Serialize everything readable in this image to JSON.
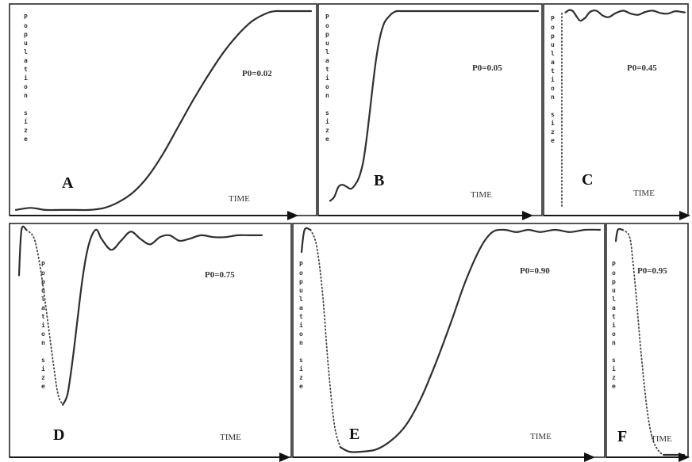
{
  "chart_data": [
    {
      "type": "line",
      "panel": "A",
      "annotation": "P0=0.02",
      "xlabel": "TIME",
      "ylabel": "Population size",
      "x": [
        0,
        0.05,
        0.1,
        0.15,
        0.2,
        0.25,
        0.3,
        0.35,
        0.4,
        0.45,
        0.5,
        0.55,
        0.6,
        0.65,
        0.7,
        0.75,
        0.8,
        0.85,
        0.88,
        0.9,
        0.95,
        1.0
      ],
      "y": [
        0.02,
        0.03,
        0.02,
        0.02,
        0.02,
        0.02,
        0.03,
        0.06,
        0.11,
        0.19,
        0.3,
        0.43,
        0.56,
        0.68,
        0.79,
        0.88,
        0.95,
        0.99,
        1.0,
        1.0,
        1.0,
        1.0
      ]
    },
    {
      "type": "line",
      "panel": "B",
      "annotation": "P0=0.05",
      "xlabel": "TIME",
      "ylabel": "Population size",
      "x": [
        0,
        0.02,
        0.04,
        0.06,
        0.08,
        0.1,
        0.12,
        0.14,
        0.16,
        0.18,
        0.2,
        0.22,
        0.24,
        0.26,
        0.28,
        0.3,
        0.32,
        0.34,
        0.36,
        0.4,
        0.5,
        0.6,
        0.7,
        0.8,
        0.9,
        1.0
      ],
      "y": [
        0.05,
        0.07,
        0.12,
        0.13,
        0.12,
        0.11,
        0.13,
        0.17,
        0.25,
        0.4,
        0.58,
        0.75,
        0.87,
        0.94,
        0.97,
        0.99,
        1.0,
        1.0,
        1.0,
        1.0,
        1.0,
        1.0,
        1.0,
        1.0,
        1.0,
        1.0
      ]
    },
    {
      "type": "line",
      "panel": "C",
      "annotation": "P0=0.45",
      "xlabel": "TIME",
      "ylabel": "Population size",
      "x": [
        0,
        0.03,
        0.06,
        0.09,
        0.12,
        0.15,
        0.19,
        0.23,
        0.28,
        0.33,
        0.38,
        0.44,
        0.5,
        0.56,
        0.62,
        0.68,
        0.74,
        0.8,
        0.86,
        0.92,
        0.97,
        1.0
      ],
      "y": [
        0.45,
        0.95,
        0.99,
        0.97,
        0.88,
        0.81,
        0.86,
        0.96,
        0.98,
        0.9,
        0.87,
        0.94,
        0.98,
        0.93,
        0.91,
        0.96,
        0.98,
        0.94,
        0.93,
        0.97,
        0.96,
        0.95
      ]
    },
    {
      "type": "line",
      "panel": "D",
      "annotation": "P0=0.75",
      "xlabel": "TIME",
      "ylabel": "Population size",
      "x": [
        0,
        0.01,
        0.03,
        0.06,
        0.08,
        0.1,
        0.12,
        0.14,
        0.16,
        0.18,
        0.2,
        0.22,
        0.24,
        0.26,
        0.28,
        0.3,
        0.32,
        0.34,
        0.38,
        0.42,
        0.46,
        0.5,
        0.54,
        0.58,
        0.62,
        0.66,
        0.7,
        0.75,
        0.8,
        0.85,
        0.9,
        0.95,
        1.0
      ],
      "y": [
        0.75,
        1.0,
        1.0,
        0.96,
        0.85,
        0.68,
        0.48,
        0.28,
        0.1,
        0.04,
        0.1,
        0.28,
        0.5,
        0.72,
        0.88,
        0.97,
        1.0,
        0.95,
        0.89,
        0.94,
        0.99,
        0.95,
        0.92,
        0.96,
        0.97,
        0.94,
        0.95,
        0.97,
        0.96,
        0.96,
        0.97,
        0.97,
        0.97
      ]
    },
    {
      "type": "line",
      "panel": "E",
      "annotation": "P0=0.90",
      "xlabel": "TIME",
      "ylabel": "Population size",
      "x": [
        0,
        0.01,
        0.03,
        0.05,
        0.07,
        0.09,
        0.11,
        0.13,
        0.16,
        0.2,
        0.25,
        0.3,
        0.35,
        0.4,
        0.45,
        0.5,
        0.55,
        0.6,
        0.64,
        0.68,
        0.72,
        0.76,
        0.8,
        0.85,
        0.9,
        0.95,
        1.0
      ],
      "y": [
        0.9,
        1.0,
        1.0,
        0.93,
        0.72,
        0.38,
        0.12,
        0.02,
        0.0,
        0.0,
        0.01,
        0.05,
        0.12,
        0.24,
        0.4,
        0.58,
        0.77,
        0.92,
        0.99,
        1.0,
        0.99,
        1.0,
        0.99,
        1.0,
        0.99,
        1.0,
        1.0
      ]
    },
    {
      "type": "line",
      "panel": "F",
      "annotation": "P0=0.95",
      "xlabel": "TIME",
      "ylabel": "Population size",
      "x": [
        0,
        0.03,
        0.1,
        0.2,
        0.25,
        0.3,
        0.35,
        0.4,
        0.45,
        0.5,
        0.55,
        0.6,
        0.65,
        0.7,
        0.8,
        0.9,
        1.0
      ],
      "y": [
        0.95,
        1.0,
        1.0,
        0.97,
        0.86,
        0.7,
        0.52,
        0.36,
        0.22,
        0.12,
        0.06,
        0.03,
        0.01,
        0.0,
        0.0,
        0.0,
        0.0
      ]
    }
  ],
  "panels": [
    {
      "letter": "A",
      "p0_label": "P0=0.02",
      "time_label": "TIME",
      "ylabel": "Population size"
    },
    {
      "letter": "B",
      "p0_label": "P0=0.05",
      "time_label": "TIME",
      "ylabel": "Population size"
    },
    {
      "letter": "C",
      "p0_label": "P0=0.45",
      "time_label": "TIME",
      "ylabel": "Population size"
    },
    {
      "letter": "D",
      "p0_label": "P0=0.75",
      "time_label": "TIME",
      "ylabel": "Population size"
    },
    {
      "letter": "E",
      "p0_label": "P0=0.90",
      "time_label": "TIME",
      "ylabel": "Population size"
    },
    {
      "letter": "F",
      "p0_label": "P0=0.95",
      "time_label": "TIME",
      "ylabel": "Population size"
    }
  ]
}
